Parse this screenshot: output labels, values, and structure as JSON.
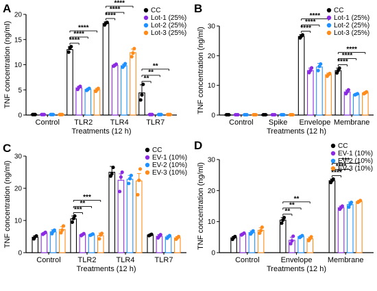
{
  "chart_data": [
    {
      "type": "bar",
      "panel": "A",
      "ylabel": "TNF concentration (ng/ml)",
      "xlabel": "Treatments (12 h)",
      "ylim": [
        0,
        20
      ],
      "yticks": [
        0,
        5,
        10,
        15,
        20
      ],
      "categories": [
        "Control",
        "TLR2",
        "TLR4",
        "TLR7"
      ],
      "series": [
        {
          "name": "CC",
          "color": "#000000",
          "values": [
            0.1,
            13.0,
            18.2,
            4.4
          ],
          "errors": [
            0.05,
            0.6,
            0.3,
            1.6
          ],
          "points": [
            [
              0.1,
              0.1,
              0.1
            ],
            [
              12.5,
              13.3,
              13.6
            ],
            [
              17.9,
              18.3,
              18.4
            ],
            [
              3.0,
              4.0,
              6.1
            ]
          ]
        },
        {
          "name": "Lot-1 (25%)",
          "color": "#8a2be2",
          "values": [
            0.1,
            5.4,
            9.9,
            0.1
          ],
          "errors": [
            0.05,
            0.3,
            0.2,
            0.05
          ],
          "points": [
            [
              0.1,
              0.1,
              0.1
            ],
            [
              5.1,
              5.5,
              5.7
            ],
            [
              9.7,
              9.9,
              10.1
            ],
            [
              0.1,
              0.1,
              0.1
            ]
          ]
        },
        {
          "name": "Lot-2 (25%)",
          "color": "#1e90ff",
          "values": [
            0.1,
            5.1,
            9.8,
            0.1
          ],
          "errors": [
            0.05,
            0.2,
            0.3,
            0.05
          ],
          "points": [
            [
              0.1,
              0.1,
              0.1
            ],
            [
              4.9,
              5.1,
              5.3
            ],
            [
              9.5,
              9.8,
              10.2
            ],
            [
              0.1,
              0.1,
              0.1
            ]
          ]
        },
        {
          "name": "Lot-3 (25%)",
          "color": "#ff8c1a",
          "values": [
            0.1,
            5.0,
            12.4,
            0.1
          ],
          "errors": [
            0.05,
            0.3,
            0.7,
            0.05
          ],
          "points": [
            [
              0.1,
              0.1,
              0.1
            ],
            [
              4.7,
              5.0,
              5.3
            ],
            [
              11.6,
              12.3,
              13.2
            ],
            [
              0.1,
              0.1,
              0.1
            ]
          ]
        }
      ],
      "significance": [
        {
          "category": "TLR2",
          "label": "****"
        },
        {
          "category": "TLR2",
          "label": "****"
        },
        {
          "category": "TLR2",
          "label": "****"
        },
        {
          "category": "TLR4",
          "label": "****"
        },
        {
          "category": "TLR4",
          "label": "****"
        },
        {
          "category": "TLR4",
          "label": "****"
        },
        {
          "category": "TLR7",
          "label": "**"
        },
        {
          "category": "TLR7",
          "label": "**"
        },
        {
          "category": "TLR7",
          "label": "**"
        }
      ]
    },
    {
      "type": "bar",
      "panel": "B",
      "ylabel": "TNF concentration (ng/ml)",
      "xlabel": "Treatments (12 h)",
      "ylim": [
        0,
        30
      ],
      "yticks": [
        0,
        10,
        20,
        30
      ],
      "categories": [
        "Control",
        "Spike",
        "Envelope",
        "Membrane"
      ],
      "series": [
        {
          "name": "CC",
          "color": "#000000",
          "values": [
            0.1,
            0.1,
            26.5,
            15.0
          ],
          "errors": [
            0.05,
            0.05,
            0.6,
            0.8
          ],
          "points": [
            [
              0.1,
              0.1,
              0.1
            ],
            [
              0.1,
              0.1,
              0.1
            ],
            [
              26.0,
              26.6,
              27.0
            ],
            [
              14.2,
              15.0,
              15.8
            ]
          ]
        },
        {
          "name": "Lot-1 (25%)",
          "color": "#8a2be2",
          "values": [
            0.1,
            0.1,
            15.0,
            7.8
          ],
          "errors": [
            0.05,
            0.05,
            0.8,
            0.6
          ],
          "points": [
            [
              0.1,
              0.1,
              0.1
            ],
            [
              0.1,
              0.1,
              0.1
            ],
            [
              14.3,
              15.0,
              15.9
            ],
            [
              7.2,
              7.8,
              8.5
            ]
          ]
        },
        {
          "name": "Lot-2 (25%)",
          "color": "#1e90ff",
          "values": [
            0.1,
            0.1,
            16.2,
            7.0
          ],
          "errors": [
            0.05,
            0.05,
            1.2,
            0.3
          ],
          "points": [
            [
              0.1,
              0.1,
              0.1
            ],
            [
              0.1,
              0.1,
              0.1
            ],
            [
              15.0,
              16.4,
              17.2
            ],
            [
              6.8,
              7.0,
              7.2
            ]
          ]
        },
        {
          "name": "Lot-3 (25%)",
          "color": "#ff8c1a",
          "values": [
            0.1,
            0.1,
            13.6,
            7.5
          ],
          "errors": [
            0.05,
            0.05,
            0.5,
            0.3
          ],
          "points": [
            [
              0.1,
              0.1,
              0.1
            ],
            [
              0.1,
              0.1,
              0.1
            ],
            [
              13.1,
              13.6,
              14.0
            ],
            [
              7.2,
              7.5,
              7.8
            ]
          ]
        }
      ],
      "significance": [
        {
          "category": "Envelope",
          "label": "****"
        },
        {
          "category": "Envelope",
          "label": "****"
        },
        {
          "category": "Envelope",
          "label": "****"
        },
        {
          "category": "Membrane",
          "label": "****"
        },
        {
          "category": "Membrane",
          "label": "****"
        },
        {
          "category": "Membrane",
          "label": "****"
        }
      ]
    },
    {
      "type": "bar",
      "panel": "C",
      "ylabel": "TNF concentration (ng/ml)",
      "xlabel": "Treatments (12 h)",
      "ylim": [
        0,
        30
      ],
      "yticks": [
        0,
        10,
        20,
        30
      ],
      "categories": [
        "Control",
        "TLR2",
        "TLR4",
        "TLR7"
      ],
      "series": [
        {
          "name": "CC",
          "color": "#000000",
          "values": [
            4.8,
            10.5,
            25.0,
            5.5
          ],
          "errors": [
            0.4,
            0.9,
            1.8,
            0.2
          ],
          "points": [
            [
              4.3,
              4.9,
              5.2
            ],
            [
              9.5,
              10.6,
              11.4
            ],
            [
              23.8,
              24.5,
              26.5
            ],
            [
              5.3,
              5.5,
              5.7
            ]
          ]
        },
        {
          "name": "EV-1 (10%)",
          "color": "#8a2be2",
          "values": [
            6.0,
            5.6,
            22.5,
            5.1
          ],
          "errors": [
            0.3,
            0.3,
            2.0,
            0.5
          ],
          "points": [
            [
              5.7,
              6.0,
              6.3
            ],
            [
              5.3,
              5.6,
              5.9
            ],
            [
              19.0,
              23.5,
              25.0
            ],
            [
              4.6,
              5.1,
              5.6
            ]
          ]
        },
        {
          "name": "EV-2 (10%)",
          "color": "#1e90ff",
          "values": [
            6.5,
            5.6,
            22.8,
            4.9
          ],
          "errors": [
            0.6,
            0.2,
            1.2,
            0.4
          ],
          "points": [
            [
              5.9,
              6.6,
              7.0
            ],
            [
              5.4,
              5.6,
              5.8
            ],
            [
              21.5,
              23.0,
              24.0
            ],
            [
              4.5,
              4.9,
              5.3
            ]
          ]
        },
        {
          "name": "EV-3 (10%)",
          "color": "#ff8c1a",
          "values": [
            7.2,
            5.3,
            22.3,
            4.6
          ],
          "errors": [
            0.9,
            0.8,
            2.3,
            0.4
          ],
          "points": [
            [
              6.2,
              7.0,
              8.3
            ],
            [
              4.3,
              5.5,
              6.0
            ],
            [
              18.0,
              22.5,
              26.0
            ],
            [
              4.2,
              4.6,
              5.0
            ]
          ]
        }
      ],
      "significance": [
        {
          "category": "TLR2",
          "label": "***"
        },
        {
          "category": "TLR2",
          "label": "**"
        },
        {
          "category": "TLR2",
          "label": "***"
        }
      ]
    },
    {
      "type": "bar",
      "panel": "D",
      "ylabel": "TNF concentration (ng/ml)",
      "xlabel": "Treatments (12 h)",
      "ylim": [
        0,
        30
      ],
      "yticks": [
        0,
        10,
        20,
        30
      ],
      "categories": [
        "Control",
        "Envelope",
        "Membrane"
      ],
      "series": [
        {
          "name": "CC",
          "color": "#000000",
          "values": [
            4.8,
            10.5,
            23.2
          ],
          "errors": [
            0.4,
            0.8,
            0.5
          ],
          "points": [
            [
              4.3,
              4.9,
              5.2
            ],
            [
              9.5,
              10.5,
              11.3
            ],
            [
              22.6,
              23.2,
              23.7
            ]
          ]
        },
        {
          "name": "EV-1 (10%)",
          "color": "#8a2be2",
          "values": [
            6.0,
            4.0,
            14.5
          ],
          "errors": [
            0.3,
            1.0,
            0.5
          ],
          "points": [
            [
              5.7,
              6.0,
              6.3
            ],
            [
              2.9,
              3.8,
              5.3
            ],
            [
              14.0,
              14.5,
              15.0
            ]
          ]
        },
        {
          "name": "EV-2 (10%)",
          "color": "#1e90ff",
          "values": [
            6.5,
            5.2,
            15.5
          ],
          "errors": [
            0.5,
            0.3,
            0.8
          ],
          "points": [
            [
              6.0,
              6.5,
              7.0
            ],
            [
              4.9,
              5.2,
              5.5
            ],
            [
              14.7,
              15.6,
              16.2
            ]
          ]
        },
        {
          "name": "EV-3 (10%)",
          "color": "#ff8c1a",
          "values": [
            7.2,
            4.5,
            16.5
          ],
          "errors": [
            0.8,
            0.5,
            0.3
          ],
          "points": [
            [
              6.3,
              7.1,
              8.2
            ],
            [
              3.9,
              4.5,
              5.1
            ],
            [
              16.2,
              16.5,
              16.8
            ]
          ]
        }
      ],
      "significance": [
        {
          "category": "Envelope",
          "label": "**"
        },
        {
          "category": "Envelope",
          "label": "**"
        },
        {
          "category": "Envelope",
          "label": "**"
        },
        {
          "category": "Membrane",
          "label": "****"
        },
        {
          "category": "Membrane",
          "label": "****"
        },
        {
          "category": "Membrane",
          "label": "***"
        }
      ]
    }
  ]
}
